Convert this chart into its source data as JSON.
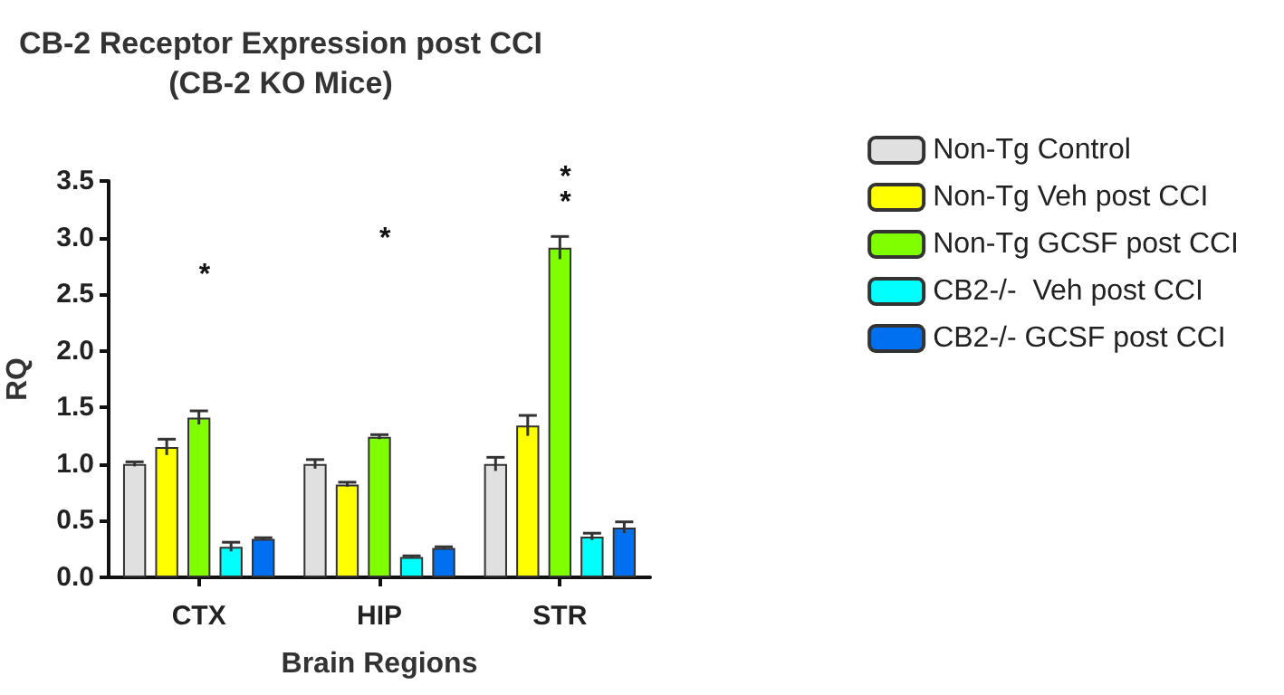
{
  "chart_data": {
    "type": "bar",
    "title": "CB-2 Receptor Expression post CCI\n(CB-2 KO Mice)",
    "xlabel": "Brain Regions",
    "ylabel": "RQ",
    "categories": [
      "CTX",
      "HIP",
      "STR"
    ],
    "series": [
      {
        "name": "Non-Tg Control",
        "color": "#e0e0e0",
        "values": [
          1.0,
          1.0,
          1.0
        ],
        "errors": [
          0.02,
          0.04,
          0.06
        ]
      },
      {
        "name": "Non-Tg Veh post CCI",
        "color": "#ffff00",
        "values": [
          1.15,
          0.82,
          1.34
        ],
        "errors": [
          0.07,
          0.02,
          0.09
        ]
      },
      {
        "name": "Non-Tg GCSF post CCI",
        "color": "#80ff00",
        "values": [
          1.41,
          1.24,
          2.91
        ],
        "errors": [
          0.06,
          0.02,
          0.1
        ]
      },
      {
        "name": "CB2-/-  Veh post CCI",
        "color": "#00ffff",
        "values": [
          0.27,
          0.18,
          0.36
        ],
        "errors": [
          0.04,
          0.01,
          0.03
        ]
      },
      {
        "name": "CB2-/- GCSF post CCI",
        "color": "#0070f0",
        "values": [
          0.34,
          0.26,
          0.44
        ],
        "errors": [
          0.01,
          0.01,
          0.05
        ]
      }
    ],
    "ylim": [
      0,
      3.5
    ],
    "yticks": [
      {
        "value": 0,
        "label": "0.0"
      },
      0.5,
      {
        "value": 1,
        "label": "1.0"
      },
      1.5,
      {
        "value": 2,
        "label": "2.0"
      },
      2.5,
      {
        "value": 3,
        "label": "3.0"
      },
      3.5
    ],
    "grid": false,
    "legend": "right",
    "annotations": [
      "*",
      "*",
      "*",
      "*"
    ]
  }
}
